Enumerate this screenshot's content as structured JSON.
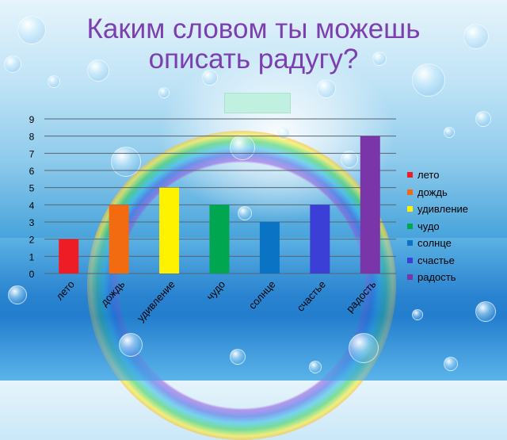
{
  "title": {
    "line1": "Каким словом ты можешь",
    "line2": "описать радугу?"
  },
  "chart_data": {
    "type": "bar",
    "categories": [
      "лето",
      "дождь",
      "удивление",
      "чудо",
      "солнце",
      "счастье",
      "радость"
    ],
    "values": [
      2,
      4,
      5,
      4,
      3,
      4,
      8
    ],
    "colors": [
      "#ee1c24",
      "#f26b10",
      "#fff200",
      "#00a650",
      "#0a73c4",
      "#3b3fd6",
      "#7a35a8"
    ],
    "ylim": [
      0,
      9
    ],
    "yticks": [
      "0",
      "1",
      "2",
      "3",
      "4",
      "5",
      "6",
      "7",
      "8",
      "9"
    ],
    "grid": true,
    "legend": {
      "position": "right",
      "items": [
        "лето",
        "дождь",
        "удивление",
        "чудо",
        "солнце",
        "счастье",
        "радость"
      ]
    }
  }
}
